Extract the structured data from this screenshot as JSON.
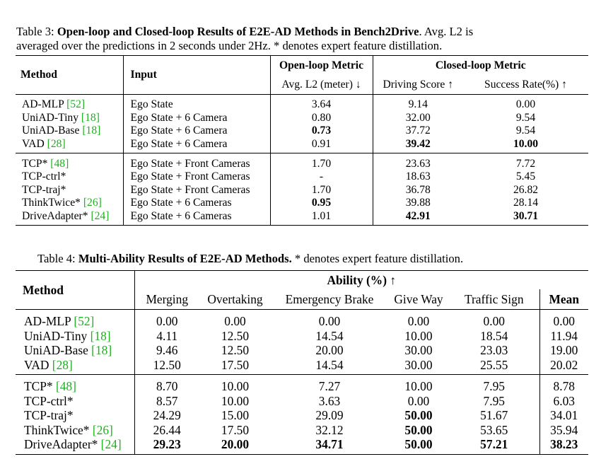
{
  "table3": {
    "caption_label": "Table 3: ",
    "caption_bold": "Open-loop and Closed-loop Results of E2E-AD Methods in Bench2Drive",
    "caption_rest1": ". Avg. L2 is",
    "caption_line2": "averaged over the predictions in 2 seconds under 2Hz. * denotes expert feature distillation.",
    "headers": {
      "method": "Method",
      "input": "Input",
      "open_loop": "Open-loop Metric",
      "closed_loop": "Closed-loop Metric",
      "avg_l2": "Avg. L2 (meter) ↓",
      "driving_score": "Driving Score ↑",
      "success_rate": "Success Rate(%) ↑"
    },
    "group1": [
      {
        "name": "AD-MLP ",
        "ref": "[52]",
        "input": "Ego State",
        "l2": "3.64",
        "ds": "9.14",
        "sr": "0.00"
      },
      {
        "name": "UniAD-Tiny ",
        "ref": "[18]",
        "input": "Ego State + 6 Camera",
        "l2": "0.80",
        "ds": "32.00",
        "sr": "9.54"
      },
      {
        "name": "UniAD-Base ",
        "ref": "[18]",
        "input": "Ego State + 6 Camera",
        "l2": "0.73",
        "ds": "37.72",
        "sr": "9.54"
      },
      {
        "name": "VAD ",
        "ref": "[28]",
        "input": "Ego State + 6 Camera",
        "l2": "0.91",
        "ds": "39.42",
        "sr": "10.00"
      }
    ],
    "group2": [
      {
        "name": "TCP* ",
        "ref": "[48]",
        "input": "Ego State + Front Cameras",
        "l2": "1.70",
        "ds": "23.63",
        "sr": "7.72"
      },
      {
        "name": "TCP-ctrl*",
        "ref": "",
        "input": "Ego State + Front Cameras",
        "l2": "-",
        "ds": "18.63",
        "sr": "5.45"
      },
      {
        "name": "TCP-traj*",
        "ref": "",
        "input": "Ego State + Front Cameras",
        "l2": "1.70",
        "ds": "36.78",
        "sr": "26.82"
      },
      {
        "name": "ThinkTwice* ",
        "ref": "[26]",
        "input": "Ego State + 6 Cameras",
        "l2": "0.95",
        "ds": "39.88",
        "sr": "28.14"
      },
      {
        "name": "DriveAdapter* ",
        "ref": "[24]",
        "input": "Ego State + 6 Cameras",
        "l2": "1.01",
        "ds": "42.91",
        "sr": "30.71"
      }
    ]
  },
  "table4": {
    "caption_label": "Table 4: ",
    "caption_bold": "Multi-Ability Results of E2E-AD Methods.",
    "caption_rest": " * denotes expert feature distillation.",
    "headers": {
      "method": "Method",
      "ability": "Ability (%) ↑",
      "merging": "Merging",
      "overtaking": "Overtaking",
      "emergency_brake": "Emergency Brake",
      "give_way": "Give Way",
      "traffic_sign": "Traffic Sign",
      "mean": "Mean"
    },
    "group1": [
      {
        "name": "AD-MLP ",
        "ref": "[52]",
        "v": [
          "0.00",
          "0.00",
          "0.00",
          "0.00",
          "0.00",
          "0.00"
        ]
      },
      {
        "name": "UniAD-Tiny ",
        "ref": "[18]",
        "v": [
          "4.11",
          "12.50",
          "14.54",
          "10.00",
          "18.54",
          "11.94"
        ]
      },
      {
        "name": "UniAD-Base ",
        "ref": "[18]",
        "v": [
          "9.46",
          "12.50",
          "20.00",
          "30.00",
          "23.03",
          "19.00"
        ]
      },
      {
        "name": "VAD ",
        "ref": "[28]",
        "v": [
          "12.50",
          "17.50",
          "14.54",
          "30.00",
          "25.55",
          "20.02"
        ]
      }
    ],
    "group2": [
      {
        "name": "TCP* ",
        "ref": "[48]",
        "v": [
          "8.70",
          "10.00",
          "7.27",
          "10.00",
          "7.95",
          "8.78"
        ]
      },
      {
        "name": "TCP-ctrl*",
        "ref": "",
        "v": [
          "8.57",
          "10.00",
          "3.63",
          "0.00",
          "7.95",
          "6.03"
        ]
      },
      {
        "name": "TCP-traj*",
        "ref": "",
        "v": [
          "24.29",
          "15.00",
          "29.09",
          "50.00",
          "51.67",
          "34.01"
        ]
      },
      {
        "name": "ThinkTwice* ",
        "ref": "[26]",
        "v": [
          "26.44",
          "17.50",
          "32.12",
          "50.00",
          "53.65",
          "35.94"
        ]
      },
      {
        "name": "DriveAdapter* ",
        "ref": "[24]",
        "v": [
          "29.23",
          "20.00",
          "34.71",
          "50.00",
          "57.21",
          "38.23"
        ]
      }
    ]
  }
}
